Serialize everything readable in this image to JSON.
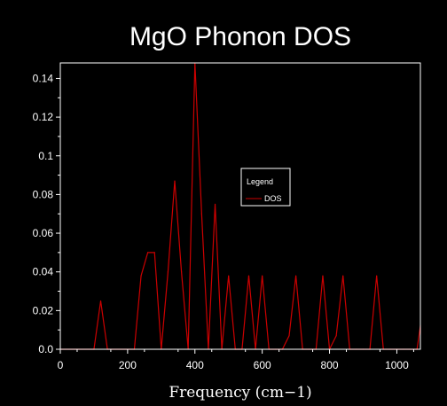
{
  "chart_data": {
    "type": "line",
    "title": "MgO Phonon DOS",
    "xlabel": "Frequency (cm−1)",
    "ylabel": "",
    "xlim": [
      0,
      1070
    ],
    "ylim": [
      0,
      0.148
    ],
    "xticks": [
      0,
      200,
      400,
      600,
      800,
      1000
    ],
    "yticks": [
      0.0,
      0.02,
      0.04,
      0.06,
      0.08,
      0.1,
      0.12,
      0.14
    ],
    "xtick_labels": [
      "0",
      "200",
      "400",
      "600",
      "800",
      "1000"
    ],
    "ytick_labels": [
      "0.0",
      "0.02",
      "0.04",
      "0.06",
      "0.08",
      "0.1",
      "0.12",
      "0.14"
    ],
    "grid": false,
    "legend": {
      "title": "Legend",
      "placement": "center-right",
      "entries": [
        "DOS"
      ]
    },
    "series": [
      {
        "name": "DOS",
        "color": "#cc0000",
        "x": [
          0,
          100,
          120,
          140,
          220,
          240,
          260,
          280,
          300,
          320,
          340,
          360,
          380,
          400,
          420,
          440,
          460,
          480,
          500,
          520,
          540,
          560,
          580,
          600,
          620,
          640,
          660,
          680,
          700,
          720,
          740,
          760,
          780,
          800,
          820,
          840,
          860,
          880,
          900,
          920,
          940,
          960,
          980,
          1000,
          1020,
          1040,
          1060,
          1070
        ],
        "y": [
          0,
          0,
          0.025,
          0,
          0,
          0.038,
          0.05,
          0.05,
          0,
          0.04,
          0.087,
          0.04,
          0,
          0.148,
          0.07,
          0,
          0.075,
          0,
          0.038,
          0,
          0,
          0.038,
          0,
          0.038,
          0,
          0,
          0,
          0.007,
          0.038,
          0,
          0,
          0,
          0.038,
          0,
          0.007,
          0.038,
          0,
          0,
          0,
          0,
          0.038,
          0,
          0,
          0,
          0,
          0,
          0,
          0.012
        ]
      }
    ]
  }
}
